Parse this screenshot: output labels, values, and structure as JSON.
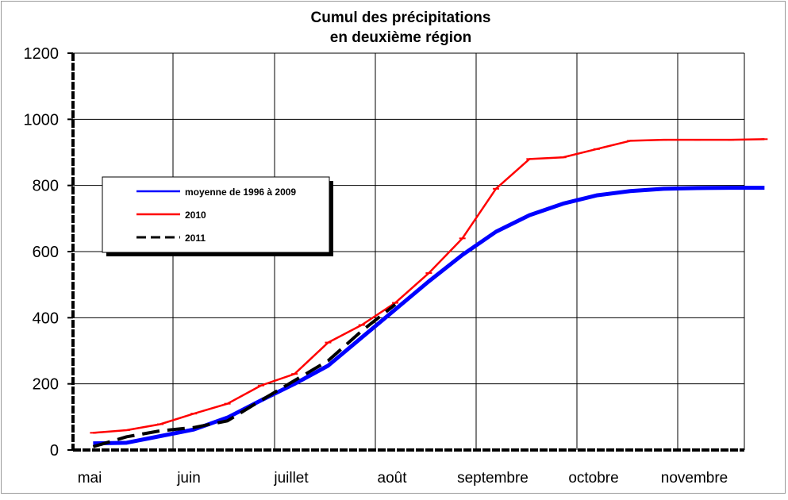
{
  "chart_data": {
    "type": "line",
    "title_lines": [
      "Cumul des précipitations",
      "en deuxième région"
    ],
    "x_tick_labels": [
      "mai",
      "juin",
      "juillet",
      "août",
      "septembre",
      "octobre",
      "novembre"
    ],
    "ylim": [
      0,
      1200
    ],
    "yticks": [
      0,
      200,
      400,
      600,
      800,
      1000,
      1200
    ],
    "xlim": [
      0,
      20
    ],
    "grid": true,
    "legend_placement": "center-left",
    "series": [
      {
        "name": "moyenne de 1996 à 2009",
        "color": "#0000ff",
        "dash": "solid",
        "x": [
          0,
          1,
          2,
          3,
          4,
          5,
          6,
          7,
          8,
          9,
          10,
          11,
          12,
          13,
          14,
          15,
          16,
          17,
          18,
          19,
          20
        ],
        "y": [
          20,
          22,
          42,
          62,
          98,
          150,
          200,
          255,
          340,
          425,
          510,
          590,
          660,
          710,
          745,
          770,
          783,
          790,
          792,
          793,
          793
        ]
      },
      {
        "name": "2010",
        "color": "#ff0000",
        "dash": "solid",
        "x": [
          0,
          1,
          2,
          3,
          4,
          5,
          6,
          7,
          8,
          9,
          10,
          11,
          12,
          13,
          14,
          15,
          16,
          17,
          18,
          19,
          20
        ],
        "y": [
          52,
          60,
          78,
          110,
          140,
          195,
          230,
          325,
          378,
          445,
          535,
          640,
          790,
          880,
          885,
          910,
          935,
          938,
          938,
          938,
          940
        ]
      },
      {
        "name": "2011",
        "color": "#000000",
        "dash": "dashed",
        "x": [
          0,
          1,
          2,
          3,
          4,
          5,
          6,
          7,
          8,
          9
        ],
        "y": [
          10,
          40,
          58,
          68,
          88,
          150,
          210,
          270,
          360,
          440
        ]
      }
    ]
  }
}
